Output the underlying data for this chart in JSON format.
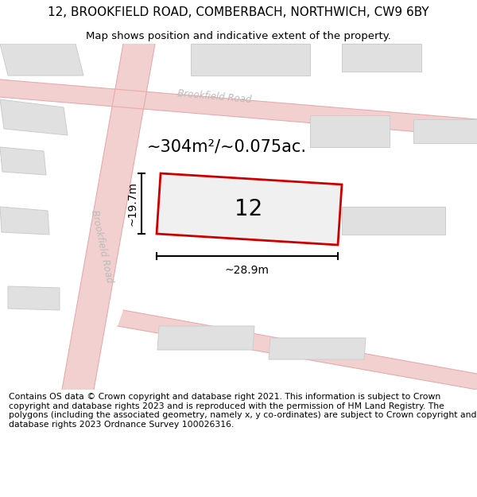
{
  "title": "12, BROOKFIELD ROAD, COMBERBACH, NORTHWICH, CW9 6BY",
  "subtitle": "Map shows position and indicative extent of the property.",
  "footer": "Contains OS data © Crown copyright and database right 2021. This information is subject to Crown copyright and database rights 2023 and is reproduced with the permission of HM Land Registry. The polygons (including the associated geometry, namely x, y co-ordinates) are subject to Crown copyright and database rights 2023 Ordnance Survey 100026316.",
  "area_text": "~304m²/~0.075ac.",
  "width_label": "~28.9m",
  "height_label": "~19.7m",
  "plot_number": "12",
  "map_bg": "#f8f8f8",
  "road_fill": "#f2d0d0",
  "road_edge": "#e8aaaa",
  "building_color": "#e0e0e0",
  "building_edge": "#cccccc",
  "plot_fill": "#f0f0f0",
  "plot_edge": "#cc0000",
  "road_label_color": "#bbbbbb",
  "dim_color": "#000000",
  "road1_label": "Brookfield Road",
  "road2_label": "Brookfield Road",
  "title_fontsize": 11,
  "subtitle_fontsize": 9.5,
  "footer_fontsize": 7.8
}
